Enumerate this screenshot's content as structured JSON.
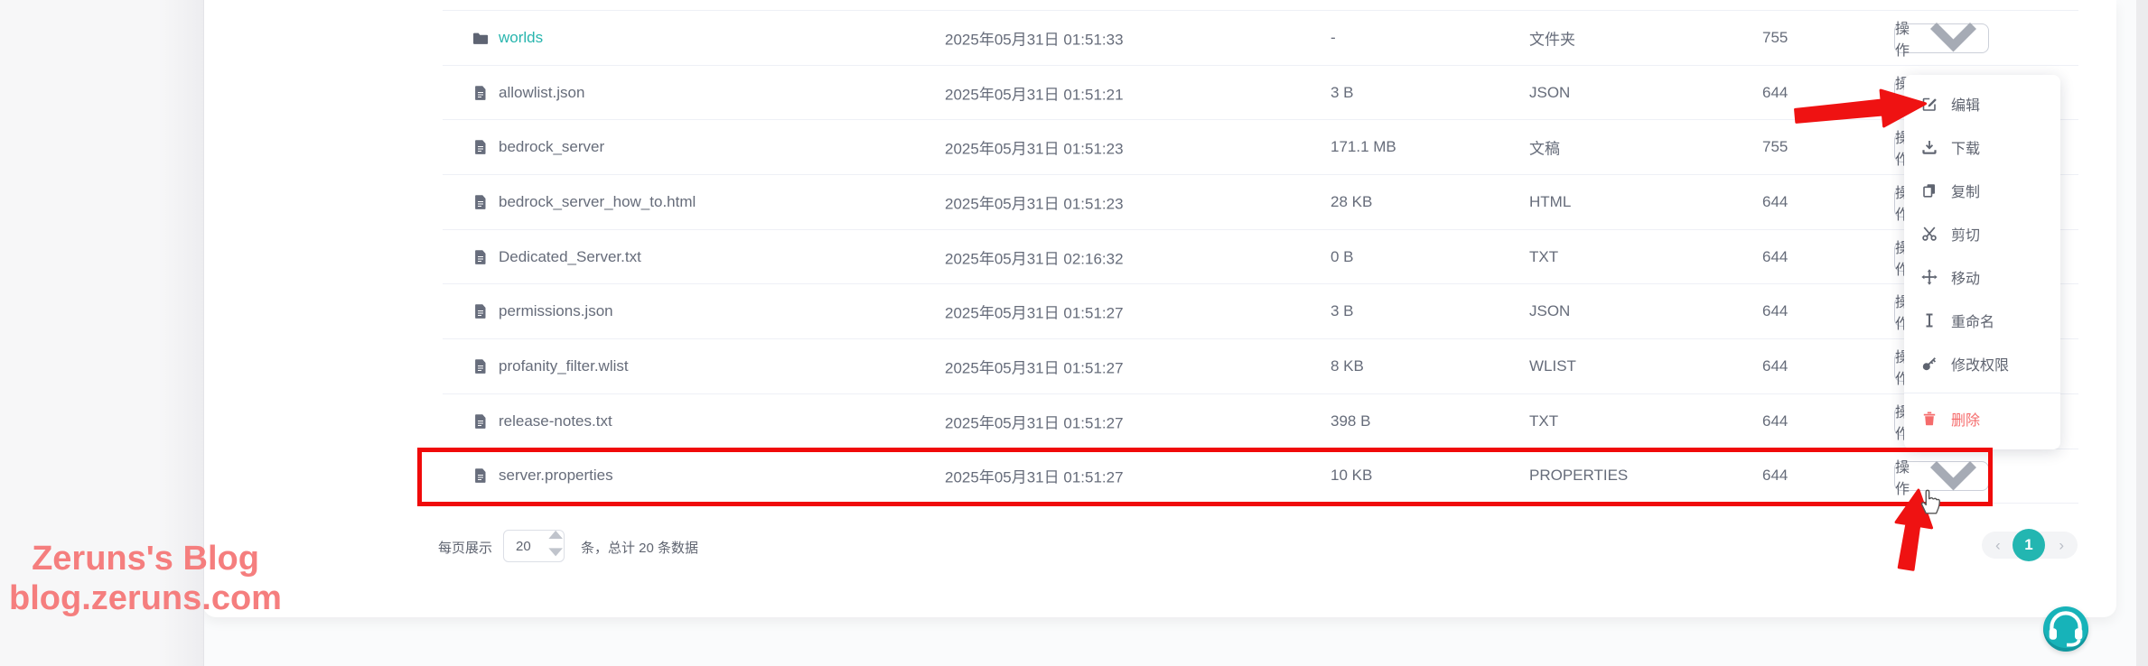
{
  "watermark": {
    "line1": "Zeruns's Blog",
    "line2": "blog.zeruns.com"
  },
  "table": {
    "action_label": "操作",
    "rows": [
      {
        "icon": "folder-icon",
        "name": "worlds",
        "link": true,
        "date": "2025年05月31日 01:51:33",
        "size": "-",
        "type": "文件夹",
        "perms": "755"
      },
      {
        "icon": "file-icon",
        "name": "allowlist.json",
        "date": "2025年05月31日 01:51:21",
        "size": "3 B",
        "type": "JSON",
        "perms": "644"
      },
      {
        "icon": "file-icon",
        "name": "bedrock_server",
        "date": "2025年05月31日 01:51:23",
        "size": "171.1 MB",
        "type": "文稿",
        "perms": "755"
      },
      {
        "icon": "file-icon",
        "name": "bedrock_server_how_to.html",
        "date": "2025年05月31日 01:51:23",
        "size": "28 KB",
        "type": "HTML",
        "perms": "644"
      },
      {
        "icon": "file-icon",
        "name": "Dedicated_Server.txt",
        "date": "2025年05月31日 02:16:32",
        "size": "0 B",
        "type": "TXT",
        "perms": "644"
      },
      {
        "icon": "file-icon",
        "name": "permissions.json",
        "date": "2025年05月31日 01:51:27",
        "size": "3 B",
        "type": "JSON",
        "perms": "644"
      },
      {
        "icon": "file-icon",
        "name": "profanity_filter.wlist",
        "date": "2025年05月31日 01:51:27",
        "size": "8 KB",
        "type": "WLIST",
        "perms": "644"
      },
      {
        "icon": "file-icon",
        "name": "release-notes.txt",
        "date": "2025年05月31日 01:51:27",
        "size": "398 B",
        "type": "TXT",
        "perms": "644"
      },
      {
        "icon": "file-icon",
        "name": "server.properties",
        "date": "2025年05月31日 01:51:27",
        "size": "10 KB",
        "type": "PROPERTIES",
        "perms": "644"
      }
    ]
  },
  "dropdown": {
    "items": [
      {
        "label": "编辑",
        "icon": "edit-icon"
      },
      {
        "label": "下载",
        "icon": "download-icon"
      },
      {
        "label": "复制",
        "icon": "copy-icon"
      },
      {
        "label": "剪切",
        "icon": "cut-icon"
      },
      {
        "label": "移动",
        "icon": "move-icon"
      },
      {
        "label": "重命名",
        "icon": "rename-icon"
      },
      {
        "label": "修改权限",
        "icon": "permissions-icon"
      },
      {
        "label": "删除",
        "icon": "delete-icon",
        "danger": true,
        "divider_before": true
      }
    ]
  },
  "pagination": {
    "per_page_label": "每页展示",
    "per_page_value": "20",
    "total_text": "条，总计 20 条数据",
    "current_page": "1"
  },
  "colors": {
    "teal": "#23b6b1",
    "danger": "#f56c6c",
    "annotation_red": "#f00a0a",
    "link": "#28b5ae"
  }
}
